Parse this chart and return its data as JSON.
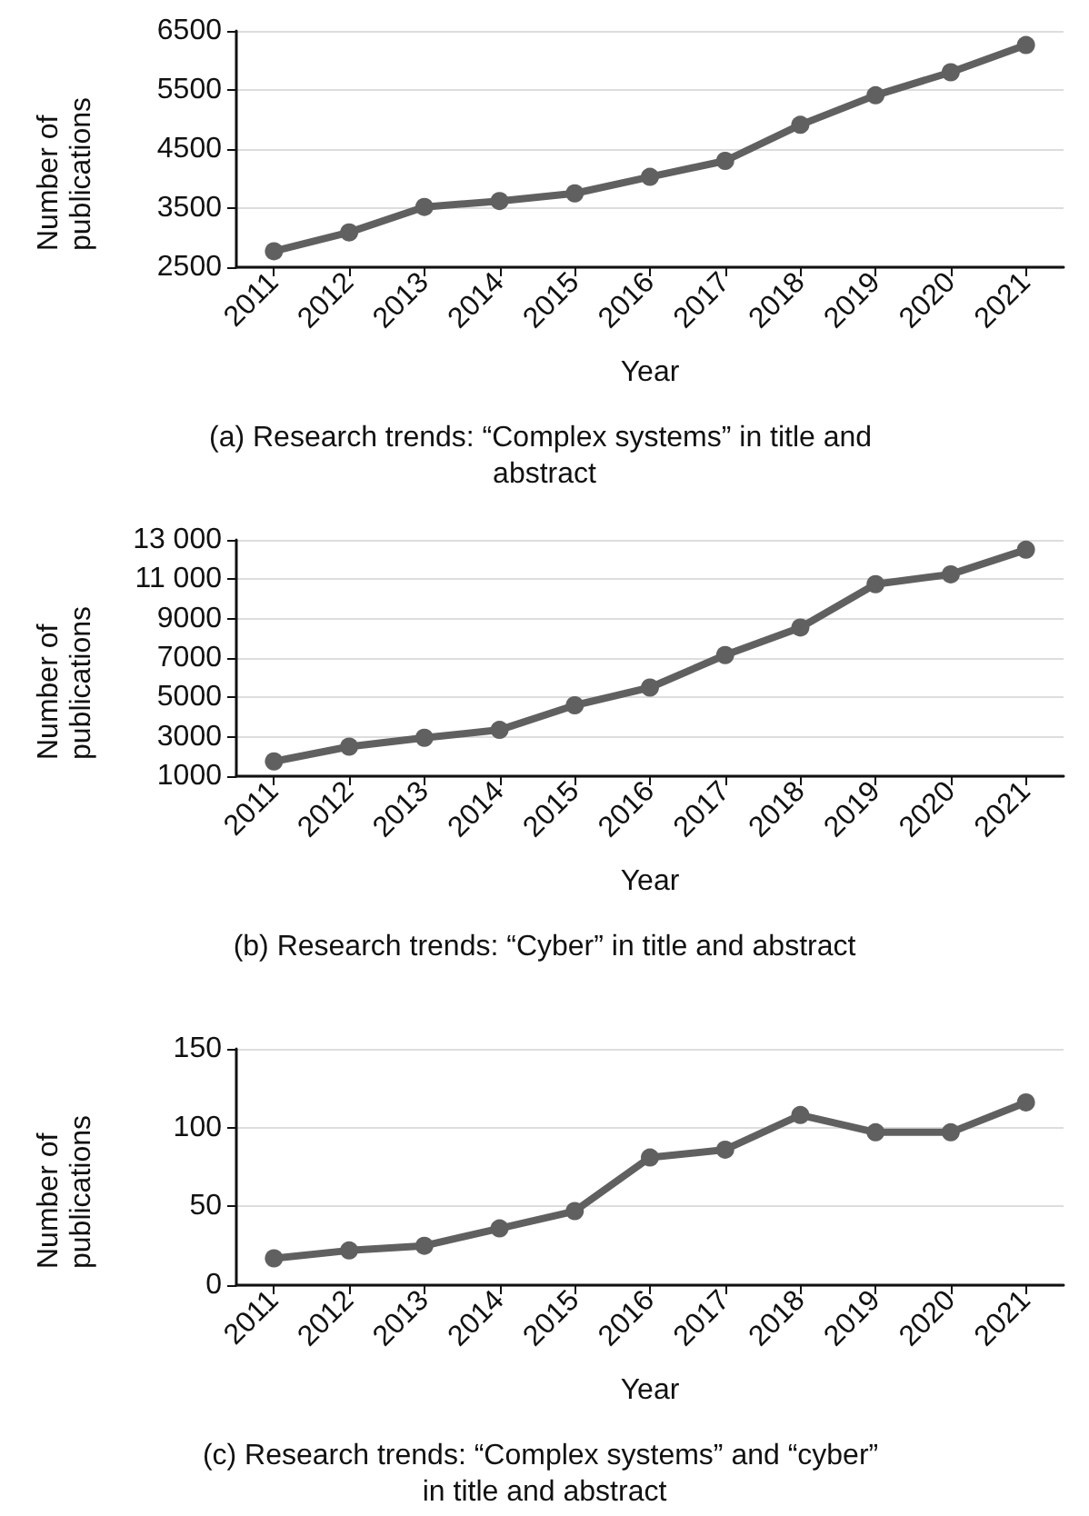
{
  "chart_data": [
    {
      "type": "line",
      "title": "(a) Research trends: “Complex systems” in title and abstract",
      "xlabel": "Year",
      "ylabel": "Number of publications",
      "categories": [
        "2011",
        "2012",
        "2013",
        "2014",
        "2015",
        "2016",
        "2017",
        "2018",
        "2019",
        "2020",
        "2021"
      ],
      "series": [
        {
          "color": "#606060",
          "values": [
            2770,
            3090,
            3520,
            3620,
            3750,
            4030,
            4300,
            4910,
            5410,
            5800,
            6260
          ]
        }
      ],
      "ylim": [
        2500,
        6500
      ],
      "yticks": [
        2500,
        3500,
        4500,
        5500,
        6500
      ],
      "grid": "y",
      "marker": "circle",
      "line_style": "solid"
    },
    {
      "type": "line",
      "title": "(b) Research trends: “Cyber” in title and abstract",
      "xlabel": "Year",
      "ylabel": "Number of publications",
      "categories": [
        "2011",
        "2012",
        "2013",
        "2014",
        "2015",
        "2016",
        "2017",
        "2018",
        "2019",
        "2020",
        "2021"
      ],
      "series": [
        {
          "color": "#606060",
          "values": [
            1750,
            2500,
            2950,
            3350,
            4600,
            5500,
            7150,
            8550,
            10750,
            11250,
            12500
          ]
        }
      ],
      "ylim": [
        1000,
        13000
      ],
      "yticks": [
        1000,
        3000,
        5000,
        7000,
        9000,
        {
          "value": 11000,
          "label": "11 000"
        },
        {
          "value": 13000,
          "label": "13 000"
        }
      ],
      "grid": "y",
      "marker": "circle",
      "line_style": "solid"
    },
    {
      "type": "line",
      "title": "(c) Research trends: “Complex systems” and “cyber” in title and abstract",
      "xlabel": "Year",
      "ylabel": "Number of publications",
      "categories": [
        "2011",
        "2012",
        "2013",
        "2014",
        "2015",
        "2016",
        "2017",
        "2018",
        "2019",
        "2020",
        "2021"
      ],
      "series": [
        {
          "color": "#606060",
          "values": [
            17,
            22,
            25,
            36,
            47,
            81,
            86,
            108,
            97,
            97,
            116
          ]
        }
      ],
      "ylim": [
        0,
        150
      ],
      "yticks": [
        0,
        50,
        100,
        150
      ],
      "grid": "y",
      "marker": "circle",
      "line_style": "solid"
    }
  ]
}
